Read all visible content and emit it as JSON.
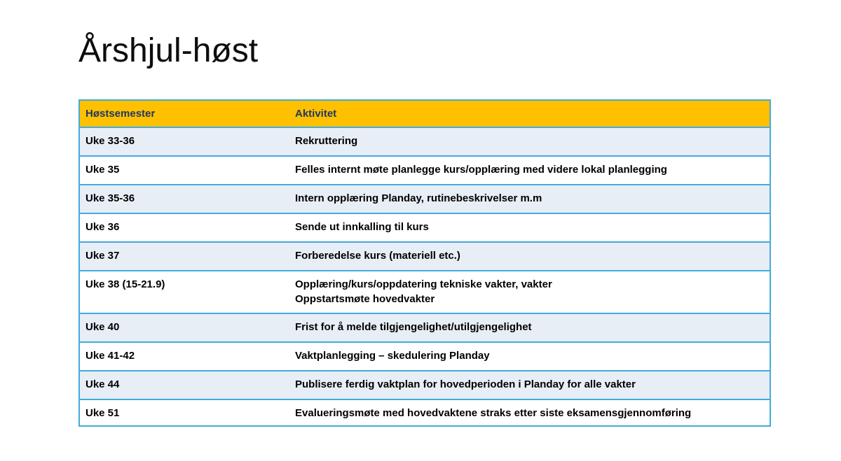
{
  "slide": {
    "title": "Årshjul-høst"
  },
  "theme": {
    "header_bg": "#FFC000",
    "header_text": "#1F3864",
    "border_blue": "#41ABDF",
    "row_alt_bg": "#E8EEF5",
    "row_bg": "#FFFFFF",
    "body_text": "#000000"
  },
  "table": {
    "columns": {
      "week": "Høstsemester",
      "activity": "Aktivitet"
    },
    "rows": [
      {
        "week": "Uke 33-36",
        "activity": "Rekruttering"
      },
      {
        "week": "Uke 35",
        "activity": "Felles internt møte planlegge kurs/opplæring med videre lokal planlegging"
      },
      {
        "week": "Uke 35-36",
        "activity": "Intern opplæring Planday, rutinebeskrivelser m.m"
      },
      {
        "week": "Uke 36",
        "activity": "Sende ut innkalling til kurs"
      },
      {
        "week": "Uke 37",
        "activity": "Forberedelse kurs (materiell etc.)"
      },
      {
        "week": "Uke 38 (15-21.9)",
        "activity": "Opplæring/kurs/oppdatering tekniske vakter, vakter\nOppstartsmøte hovedvakter"
      },
      {
        "week": "Uke 40",
        "activity": "Frist for å melde tilgjengelighet/utilgjengelighet"
      },
      {
        "week": "Uke 41-42",
        "activity": "Vaktplanlegging – skedulering Planday"
      },
      {
        "week": "Uke 44",
        "activity": "Publisere ferdig vaktplan for hovedperioden i Planday for alle vakter"
      },
      {
        "week": "Uke 51",
        "activity": "Evalueringsmøte med hovedvaktene straks etter siste eksamensgjennomføring"
      }
    ]
  }
}
